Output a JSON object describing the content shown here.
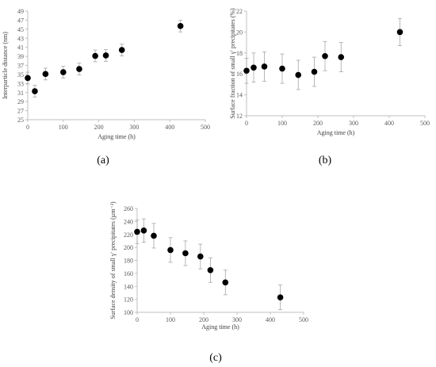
{
  "colors": {
    "marker": "#000000",
    "axis": "#bfbfbf",
    "errorbar": "#a6a6a6",
    "text": "#595959"
  },
  "chart_data": [
    {
      "type": "scatter",
      "panel_label": "(a)",
      "xlabel": "Aging time (h)",
      "ylabel": "Interparticle distance (nm)",
      "xlim": [
        0,
        500
      ],
      "ylim": [
        25,
        49
      ],
      "x_ticks": [
        "0",
        "100",
        "200",
        "300",
        "400",
        "500"
      ],
      "y_ticks": [
        "25",
        "27",
        "29",
        "31",
        "33",
        "35",
        "37",
        "39",
        "41",
        "43",
        "45",
        "47",
        "49"
      ],
      "grid": false,
      "error_bars": true,
      "series": [
        {
          "x": [
            0,
            20,
            50,
            100,
            145,
            190,
            220,
            265,
            430
          ],
          "y": [
            34.2,
            31.3,
            35.1,
            35.5,
            36.2,
            39.1,
            39.2,
            40.4,
            45.7
          ],
          "err": [
            1.3,
            1.3,
            1.3,
            1.3,
            1.3,
            1.3,
            1.3,
            1.3,
            1.3
          ]
        }
      ]
    },
    {
      "type": "scatter",
      "panel_label": "(b)",
      "xlabel": "Aging time (h)",
      "ylabel": "Surface fraction of small γ′ precipitates (%)",
      "xlim": [
        0,
        500
      ],
      "ylim": [
        12,
        22
      ],
      "x_ticks": [
        "0",
        "100",
        "200",
        "300",
        "400",
        "500"
      ],
      "y_ticks": [
        "12",
        "14",
        "16",
        "18",
        "20",
        "22"
      ],
      "grid": false,
      "error_bars": true,
      "series": [
        {
          "x": [
            0,
            20,
            50,
            100,
            145,
            190,
            220,
            265,
            430
          ],
          "y": [
            16.3,
            16.6,
            16.7,
            16.5,
            15.9,
            16.2,
            17.7,
            17.6,
            20.0
          ],
          "err": [
            1.2,
            1.4,
            1.4,
            1.4,
            1.4,
            1.4,
            1.4,
            1.4,
            1.3
          ]
        }
      ]
    },
    {
      "type": "scatter",
      "panel_label": "(c)",
      "xlabel": "Aging time (h)",
      "ylabel": "Surface density of small γ′ precipitates (µm⁻²)",
      "xlim": [
        0,
        500
      ],
      "ylim": [
        100,
        260
      ],
      "x_ticks": [
        "0",
        "100",
        "200",
        "300",
        "400",
        "500"
      ],
      "y_ticks": [
        "100",
        "120",
        "140",
        "160",
        "180",
        "200",
        "220",
        "240",
        "260"
      ],
      "grid": false,
      "error_bars": true,
      "series": [
        {
          "x": [
            0,
            20,
            50,
            100,
            145,
            190,
            220,
            265,
            430
          ],
          "y": [
            224,
            226,
            218,
            196,
            191,
            186,
            165,
            146,
            123
          ],
          "err": [
            18,
            18,
            19,
            19,
            19,
            19,
            19,
            19,
            19
          ]
        }
      ]
    }
  ]
}
